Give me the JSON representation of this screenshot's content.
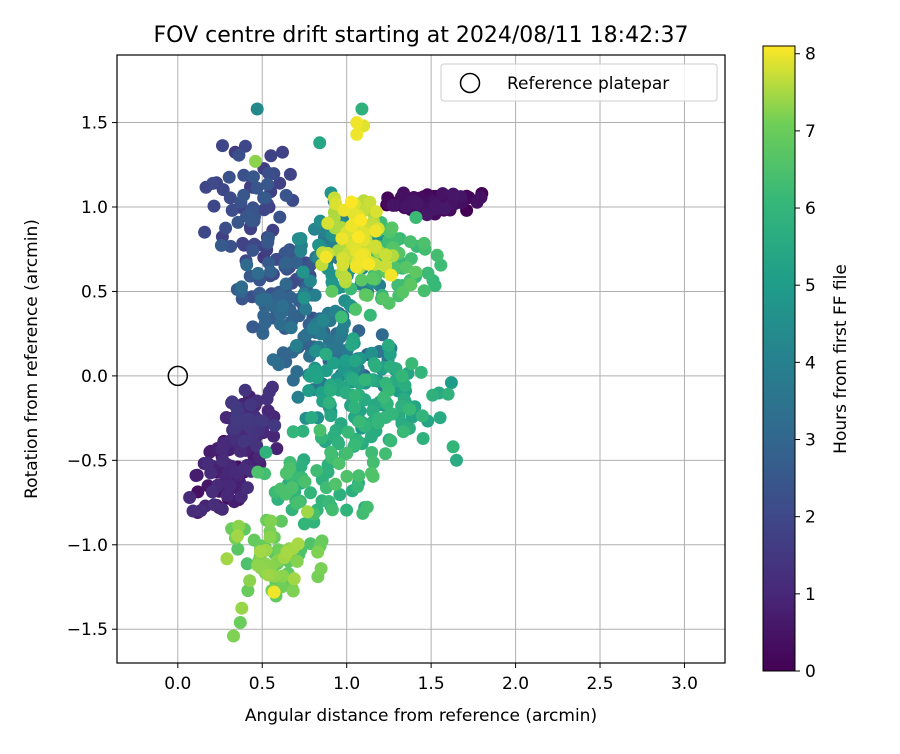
{
  "chart_data": {
    "type": "scatter",
    "title": "FOV centre drift starting at 2024/08/11 18:42:37",
    "xlabel": "Angular distance from reference (arcmin)",
    "ylabel": "Rotation from reference (arcmin)",
    "xlim": [
      -0.36,
      3.24
    ],
    "ylim": [
      -1.7,
      1.9
    ],
    "x_ticks": [
      0.0,
      0.5,
      1.0,
      1.5,
      2.0,
      2.5,
      3.0
    ],
    "x_tick_labels": [
      "0.0",
      "0.5",
      "1.0",
      "1.5",
      "2.0",
      "2.5",
      "3.0"
    ],
    "y_ticks": [
      -1.5,
      -1.0,
      -0.5,
      0.0,
      0.5,
      1.0,
      1.5
    ],
    "y_tick_labels": [
      "−1.5",
      "−1.0",
      "−0.5",
      "0.0",
      "0.5",
      "1.0",
      "1.5"
    ],
    "grid": true,
    "legend": {
      "position": "upper-right",
      "entries": [
        {
          "label": "Reference platepar",
          "marker": "open-circle",
          "x": 0.0,
          "y": 0.0
        }
      ]
    },
    "colorbar": {
      "label": "Hours from first FF file",
      "colormap": "viridis",
      "range": [
        0,
        8.1
      ],
      "ticks": [
        0,
        1,
        2,
        3,
        4,
        5,
        6,
        7,
        8
      ],
      "tick_labels": [
        "0",
        "1",
        "2",
        "3",
        "4",
        "5",
        "6",
        "7",
        "8"
      ]
    },
    "clusters": [
      {
        "hours": [
          0.0,
          0.6
        ],
        "x": [
          1.1,
          1.85
        ],
        "y": [
          0.95,
          1.1
        ]
      },
      {
        "hours": [
          0.3,
          1.2
        ],
        "x": [
          0.08,
          0.5
        ],
        "y": [
          -0.85,
          -0.35
        ]
      },
      {
        "hours": [
          0.8,
          1.6
        ],
        "x": [
          0.25,
          0.6
        ],
        "y": [
          -0.5,
          -0.05
        ]
      },
      {
        "hours": [
          1.5,
          2.6
        ],
        "x": [
          0.15,
          0.7
        ],
        "y": [
          0.6,
          1.4
        ]
      },
      {
        "hours": [
          2.0,
          3.3
        ],
        "x": [
          0.3,
          0.9
        ],
        "y": [
          0.2,
          0.8
        ]
      },
      {
        "hours": [
          2.8,
          4.0
        ],
        "x": [
          0.55,
          1.3
        ],
        "y": [
          -0.15,
          0.45
        ]
      },
      {
        "hours": [
          3.5,
          4.8
        ],
        "x": [
          0.65,
          1.25
        ],
        "y": [
          0.3,
          1.1
        ]
      },
      {
        "hours": [
          4.5,
          5.6
        ],
        "x": [
          0.7,
          1.4
        ],
        "y": [
          -0.35,
          0.25
        ]
      },
      {
        "hours": [
          5.3,
          6.3
        ],
        "x": [
          0.8,
          1.65
        ],
        "y": [
          -0.55,
          0.15
        ]
      },
      {
        "hours": [
          5.6,
          6.6
        ],
        "x": [
          0.4,
          1.3
        ],
        "y": [
          -0.9,
          -0.3
        ]
      },
      {
        "hours": [
          6.0,
          6.8
        ],
        "x": [
          0.9,
          1.6
        ],
        "y": [
          0.3,
          1.0
        ]
      },
      {
        "hours": [
          6.5,
          7.5
        ],
        "x": [
          0.25,
          0.9
        ],
        "y": [
          -1.4,
          -0.8
        ]
      },
      {
        "hours": [
          7.5,
          8.1
        ],
        "x": [
          0.8,
          1.3
        ],
        "y": [
          0.5,
          1.1
        ]
      }
    ],
    "points": [
      [
        1.53,
        0.99,
        0.0
      ],
      [
        1.71,
        0.98,
        0.0
      ],
      [
        1.8,
        1.08,
        0.0
      ],
      [
        0.47,
        1.58,
        4.3
      ],
      [
        1.09,
        1.58,
        5.8
      ],
      [
        1.1,
        1.48,
        7.9
      ],
      [
        1.06,
        1.43,
        8.0
      ],
      [
        0.4,
        1.36,
        2.0
      ],
      [
        1.06,
        1.5,
        8.0
      ],
      [
        0.84,
        1.38,
        5.4
      ],
      [
        0.46,
        1.27,
        7.3
      ],
      [
        0.0,
        0.0,
        0.0
      ],
      [
        0.57,
        -1.28,
        8.0
      ],
      [
        0.33,
        -1.54,
        7.2
      ],
      [
        0.37,
        -1.46,
        7.0
      ],
      [
        1.62,
        -0.04,
        5.0
      ],
      [
        1.65,
        -0.5,
        5.6
      ],
      [
        1.63,
        -0.42,
        6.0
      ],
      [
        0.27,
        -0.4,
        1.0
      ],
      [
        0.07,
        -0.72,
        1.1
      ],
      [
        0.09,
        -0.8,
        1.2
      ]
    ]
  }
}
